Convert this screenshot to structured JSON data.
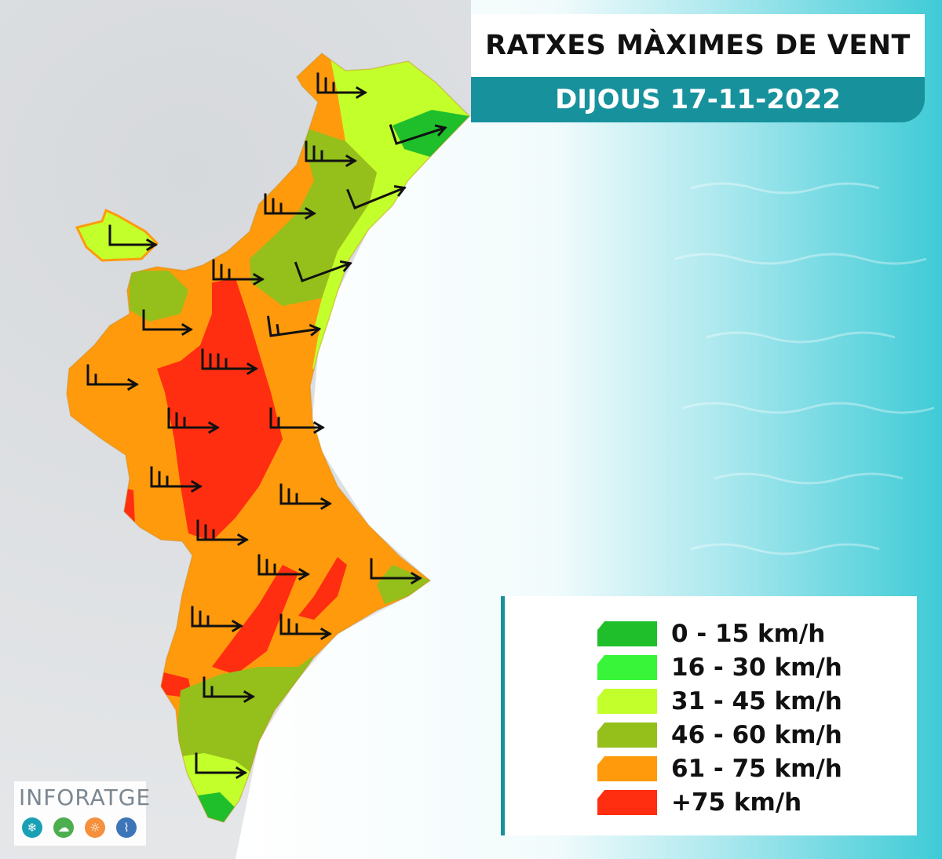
{
  "header": {
    "title": "RATXES MÀXIMES DE VENT",
    "date": "DIJOUS 17-11-2022"
  },
  "legend": {
    "items": [
      {
        "label": "0 - 15 km/h",
        "color": "#1fbf2c"
      },
      {
        "label": "16 - 30 km/h",
        "color": "#39f53a"
      },
      {
        "label": "31 - 45 km/h",
        "color": "#c3ff2b"
      },
      {
        "label": "46 - 60 km/h",
        "color": "#95bf1b"
      },
      {
        "label": "61 - 75 km/h",
        "color": "#ff9a0d"
      },
      {
        "label": "+75 km/h",
        "color": "#ff2e10"
      }
    ]
  },
  "logo": {
    "text": "INFORATGE",
    "icons": [
      {
        "name": "snowflake-icon",
        "glyph": "❄",
        "color": "#1aa0b5"
      },
      {
        "name": "rain-cloud-icon",
        "glyph": "☁",
        "color": "#4cae4f"
      },
      {
        "name": "sun-icon",
        "glyph": "☼",
        "color": "#f5903d"
      },
      {
        "name": "thermometer-icon",
        "glyph": "⌇",
        "color": "#3d75b9"
      }
    ]
  },
  "colors": {
    "accent": "#17929d",
    "sea": "#46cfd9"
  }
}
